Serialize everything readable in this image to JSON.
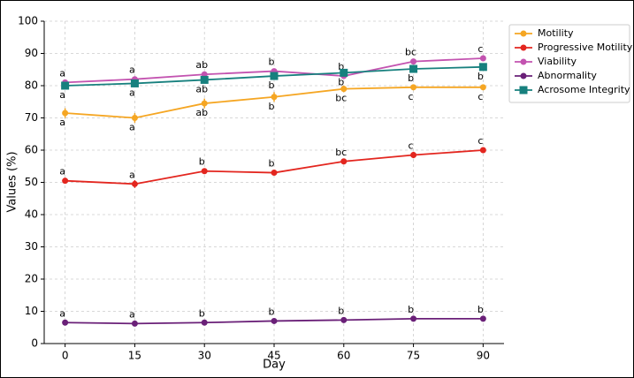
{
  "chart_data": {
    "type": "line",
    "x_label": "Day",
    "y_label": "Values (%)",
    "x": [
      0,
      15,
      30,
      45,
      60,
      75,
      90
    ],
    "xlim": [
      -4.5,
      94.5
    ],
    "xticks": [
      0,
      15,
      30,
      45,
      60,
      75,
      90
    ],
    "ylim": [
      0,
      100
    ],
    "yticks": [
      0,
      10,
      20,
      30,
      40,
      50,
      60,
      70,
      80,
      90,
      100
    ],
    "grid": true,
    "legend": "upper right",
    "series": [
      {
        "name": "Motility",
        "color": "#f5a623",
        "marker": "circle",
        "values": [
          71.5,
          70,
          74.5,
          76.5,
          79,
          79.5,
          79.5
        ],
        "errors": [
          1.5,
          1.5,
          1.5,
          1.5,
          1,
          0.8,
          0.8
        ],
        "labels": [
          "a",
          "a",
          "ab",
          "b",
          "bc",
          "c",
          "c"
        ],
        "label_position": "below"
      },
      {
        "name": "Progressive Motility",
        "color": "#e3261f",
        "marker": "circle",
        "values": [
          50.5,
          49.5,
          53.5,
          53,
          56.5,
          58.5,
          60
        ],
        "errors": [
          0.8,
          1.2,
          0.8,
          0.8,
          0.8,
          1,
          0.8
        ],
        "labels": [
          "a",
          "a",
          "b",
          "b",
          "bc",
          "c",
          "c"
        ],
        "label_position": "above"
      },
      {
        "name": "Viability",
        "color": "#c353b0",
        "marker": "circle",
        "values": [
          81,
          82,
          83.5,
          84.5,
          83,
          87.5,
          88.5
        ],
        "errors": [
          0.8,
          0.8,
          0.8,
          0.8,
          0.8,
          0.8,
          0.8
        ],
        "labels": [
          "a",
          "a",
          "ab",
          "b",
          "b",
          "bc",
          "c"
        ],
        "label_position": "above"
      },
      {
        "name": "Abnormality",
        "color": "#6a2078",
        "marker": "circle",
        "values": [
          6.5,
          6.2,
          6.5,
          7,
          7.3,
          7.7,
          7.7
        ],
        "errors": [
          0.5,
          0.6,
          0.5,
          0.5,
          0.5,
          0.5,
          0.5
        ],
        "labels": [
          "a",
          "a",
          "b",
          "b",
          "b",
          "b",
          "b"
        ],
        "label_position": "above"
      },
      {
        "name": "Acrosome Integrity",
        "color": "#17807e",
        "marker": "square",
        "values": [
          80,
          80.7,
          81.8,
          83,
          84,
          85.2,
          85.8
        ],
        "errors": [
          0.5,
          0.5,
          0.5,
          0.5,
          0.5,
          0.5,
          0.5
        ],
        "labels": [
          "a",
          "a",
          "ab",
          "b",
          "b",
          "b",
          "b"
        ],
        "label_position": "below"
      }
    ]
  }
}
